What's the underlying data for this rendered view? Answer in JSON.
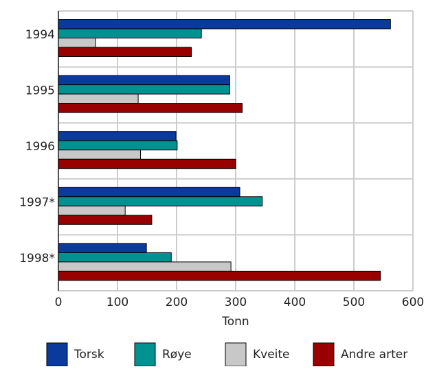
{
  "chart_data": {
    "type": "bar",
    "orientation": "horizontal",
    "title": "",
    "xlabel": "Tonn",
    "ylabel": "",
    "categories": [
      "1994",
      "1995",
      "1996",
      "1997*",
      "1998*"
    ],
    "series": [
      {
        "name": "Torsk",
        "color": "#0a3a9c",
        "values": [
          562,
          290,
          199,
          307,
          149
        ]
      },
      {
        "name": "Røye",
        "color": "#009191",
        "values": [
          242,
          290,
          201,
          345,
          191
        ]
      },
      {
        "name": "Kveite",
        "color": "#c8c8c8",
        "values": [
          63,
          135,
          139,
          113,
          292
        ]
      },
      {
        "name": "Andre arter",
        "color": "#990000",
        "values": [
          225,
          311,
          300,
          158,
          545
        ]
      }
    ],
    "xlim": [
      0,
      600
    ],
    "xticks": [
      0,
      100,
      200,
      300,
      400,
      500,
      600
    ],
    "grid": true,
    "legend_position": "bottom"
  }
}
